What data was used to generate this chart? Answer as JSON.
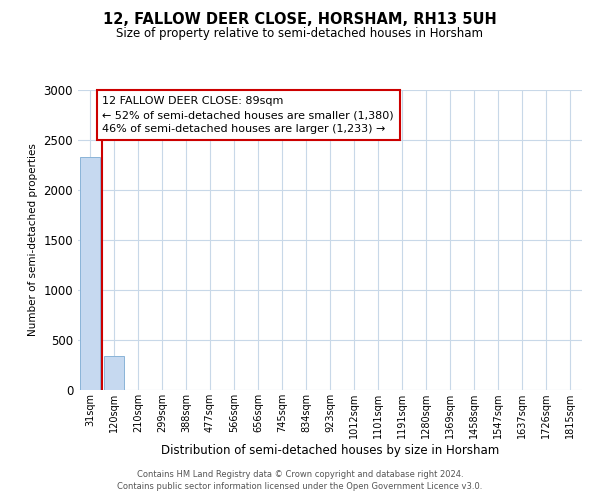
{
  "title": "12, FALLOW DEER CLOSE, HORSHAM, RH13 5UH",
  "subtitle": "Size of property relative to semi-detached houses in Horsham",
  "xlabel": "Distribution of semi-detached houses by size in Horsham",
  "ylabel": "Number of semi-detached properties",
  "categories": [
    "31sqm",
    "120sqm",
    "210sqm",
    "299sqm",
    "388sqm",
    "477sqm",
    "566sqm",
    "656sqm",
    "745sqm",
    "834sqm",
    "923sqm",
    "1012sqm",
    "1101sqm",
    "1191sqm",
    "1280sqm",
    "1369sqm",
    "1458sqm",
    "1547sqm",
    "1637sqm",
    "1726sqm",
    "1815sqm"
  ],
  "values": [
    2330,
    340,
    0,
    0,
    0,
    0,
    0,
    0,
    0,
    0,
    0,
    0,
    0,
    0,
    0,
    0,
    0,
    0,
    0,
    0,
    0
  ],
  "bar_color": "#c6d9f0",
  "bar_edge_color": "#8ab4d8",
  "highlight_line_color": "#cc0000",
  "annotation_line1": "12 FALLOW DEER CLOSE: 89sqm",
  "annotation_line2": "← 52% of semi-detached houses are smaller (1,380)",
  "annotation_line3": "46% of semi-detached houses are larger (1,233) →",
  "annotation_box_color": "#ffffff",
  "annotation_box_edge_color": "#cc0000",
  "ylim": [
    0,
    3000
  ],
  "yticks": [
    0,
    500,
    1000,
    1500,
    2000,
    2500,
    3000
  ],
  "background_color": "#ffffff",
  "grid_color": "#c8d8e8",
  "footer_line1": "Contains HM Land Registry data © Crown copyright and database right 2024.",
  "footer_line2": "Contains public sector information licensed under the Open Government Licence v3.0."
}
